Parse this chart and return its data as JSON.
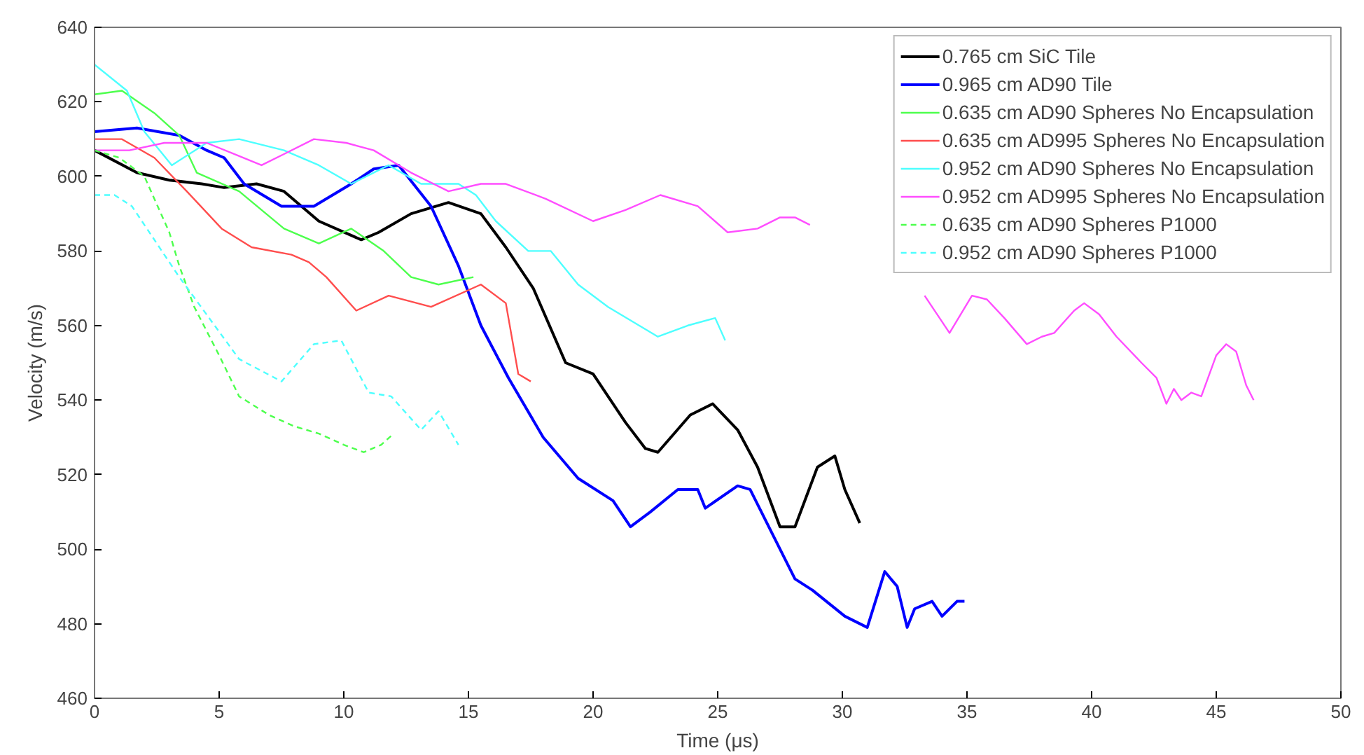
{
  "chart_data": {
    "type": "line",
    "xlabel": "Time (μs)",
    "ylabel": "Velocity (m/s)",
    "xlim": [
      0,
      50
    ],
    "ylim": [
      460,
      640
    ],
    "xticks": [
      0,
      5,
      10,
      15,
      20,
      25,
      30,
      35,
      40,
      45,
      50
    ],
    "yticks": [
      460,
      480,
      500,
      520,
      540,
      560,
      580,
      600,
      620,
      640
    ],
    "grid": false,
    "legend": "top right",
    "line_style": "solid",
    "series": [
      {
        "name": "0.765 cm SiC Tile",
        "color": "#000000",
        "x": [
          0,
          1.7,
          3,
          4.3,
          5.2,
          6.5,
          7.6,
          9,
          10.7,
          11.4,
          12.7,
          14.2,
          15.5,
          16.5,
          17.6,
          18.9,
          20,
          21.3,
          22.1,
          22.6,
          23.9,
          24.8,
          25.8,
          26.6,
          27.5,
          28.1,
          29,
          29.7,
          30.1,
          30.7
        ],
        "values": [
          607,
          601,
          599,
          598,
          597,
          598,
          596,
          588,
          583,
          585,
          590,
          593,
          590,
          581,
          570,
          550,
          547,
          534,
          527,
          526,
          536,
          539,
          532,
          522,
          506,
          506,
          522,
          525,
          516,
          507
        ]
      },
      {
        "name": "0.965 cm AD90 Tile",
        "color": "#0000ff",
        "x": [
          0,
          1.7,
          3.4,
          4.5,
          5.2,
          6,
          7.5,
          8.8,
          10.3,
          11.2,
          12.2,
          13.5,
          14.6,
          15.5,
          16.6,
          18,
          19.4,
          20.8,
          21.5,
          22.3,
          23.4,
          24.2,
          24.5,
          25.8,
          26.3,
          28.1,
          28.8,
          30.1,
          31,
          31.7,
          32.2,
          32.6,
          32.9,
          33.6,
          34,
          34.6,
          34.9
        ],
        "values": [
          612,
          613,
          611,
          607,
          605,
          598,
          592,
          592,
          598,
          602,
          603,
          592,
          576,
          560,
          546,
          530,
          519,
          513,
          506,
          510,
          516,
          516,
          511,
          517,
          516,
          492,
          489,
          482,
          479,
          494,
          490,
          479,
          484,
          486,
          482,
          486,
          486
        ]
      },
      {
        "name": "0.635 cm AD90 Spheres No Encapsulation",
        "color": "#4dff4d",
        "x": [
          0,
          1.1,
          2.4,
          3.4,
          4.1,
          5.8,
          7.6,
          9,
          10.3,
          11.6,
          12.7,
          13.8,
          15.2
        ],
        "values": [
          622,
          623,
          617,
          611,
          601,
          596,
          586,
          582,
          586,
          580,
          573,
          571,
          573
        ]
      },
      {
        "name": "0.635 cm AD995 Spheres No Encapsulation",
        "color": "#ff4d4d",
        "x": [
          0,
          1.1,
          2.4,
          3.7,
          5.1,
          6.3,
          7.9,
          8.6,
          9.3,
          10.5,
          11.8,
          13.5,
          15.5,
          16.5,
          17,
          17.5
        ],
        "values": [
          610,
          610,
          605,
          596,
          586,
          581,
          579,
          577,
          573,
          564,
          568,
          565,
          571,
          566,
          547,
          545
        ]
      },
      {
        "name": "0.952 cm AD90 Spheres No Encapsulation",
        "color": "#4dffff",
        "x": [
          0,
          1.3,
          2,
          3.1,
          4.5,
          5.8,
          7.6,
          9,
          10.3,
          11.8,
          13.1,
          14.6,
          15.3,
          16.1,
          17.4,
          18.3,
          19.4,
          20.6,
          22.6,
          23.8,
          24.9,
          25.3
        ],
        "values": [
          630,
          623,
          612,
          603,
          609,
          610,
          607,
          603,
          598,
          603,
          598,
          598,
          595,
          588,
          580,
          580,
          571,
          565,
          557,
          560,
          562,
          556
        ]
      },
      {
        "name": "0.952 cm AD995 Spheres No Encapsulation",
        "color": "#ff4dff",
        "x": [
          0,
          1.4,
          2.8,
          4.5,
          5.6,
          6.7,
          7.6,
          8.8,
          10.1,
          11.2,
          12.7,
          14.2,
          15.5,
          16.5,
          18.1,
          20,
          21.3,
          22.7,
          24.2,
          25.4,
          26.6,
          27.5,
          28.1,
          28.7,
          31,
          33.3,
          34.3,
          35.2,
          35.8,
          36.5,
          37.4,
          38,
          38.5,
          39.3,
          39.7,
          40.3,
          41,
          42,
          42.6,
          43,
          43.3,
          43.6,
          44,
          44.4,
          45,
          45.4,
          45.8,
          46.2,
          46.5
        ],
        "values": [
          607,
          607,
          609,
          609,
          606,
          603,
          606,
          610,
          609,
          607,
          601,
          596,
          598,
          598,
          594,
          588,
          591,
          595,
          592,
          585,
          586,
          589,
          589,
          587,
          null,
          568,
          558,
          568,
          567,
          562,
          555,
          557,
          558,
          564,
          566,
          563,
          557,
          550,
          546,
          539,
          543,
          540,
          542,
          541,
          552,
          555,
          553,
          544,
          540
        ]
      },
      {
        "name": "0.635 cm AD90 Spheres P1000",
        "color": "#4dff4d",
        "line_style": "dashed",
        "x": [
          0,
          1,
          2,
          3,
          3.4,
          4,
          5,
          5.8,
          7,
          8,
          9,
          10,
          10.8,
          11.5,
          12
        ],
        "values": [
          607,
          605,
          600,
          585,
          576,
          565,
          552,
          541,
          536,
          533,
          531,
          528,
          526,
          528,
          531
        ]
      },
      {
        "name": "0.952 cm AD90 Spheres P1000",
        "color": "#4dffff",
        "line_style": "dashed",
        "x": [
          0,
          0.8,
          1.5,
          3.4,
          5.8,
          7.5,
          8.8,
          9.9,
          11,
          11.9,
          13.1,
          13.8,
          14.6
        ],
        "values": [
          595,
          595,
          592,
          573,
          551,
          545,
          555,
          556,
          542,
          541,
          532,
          537,
          528
        ]
      }
    ]
  }
}
